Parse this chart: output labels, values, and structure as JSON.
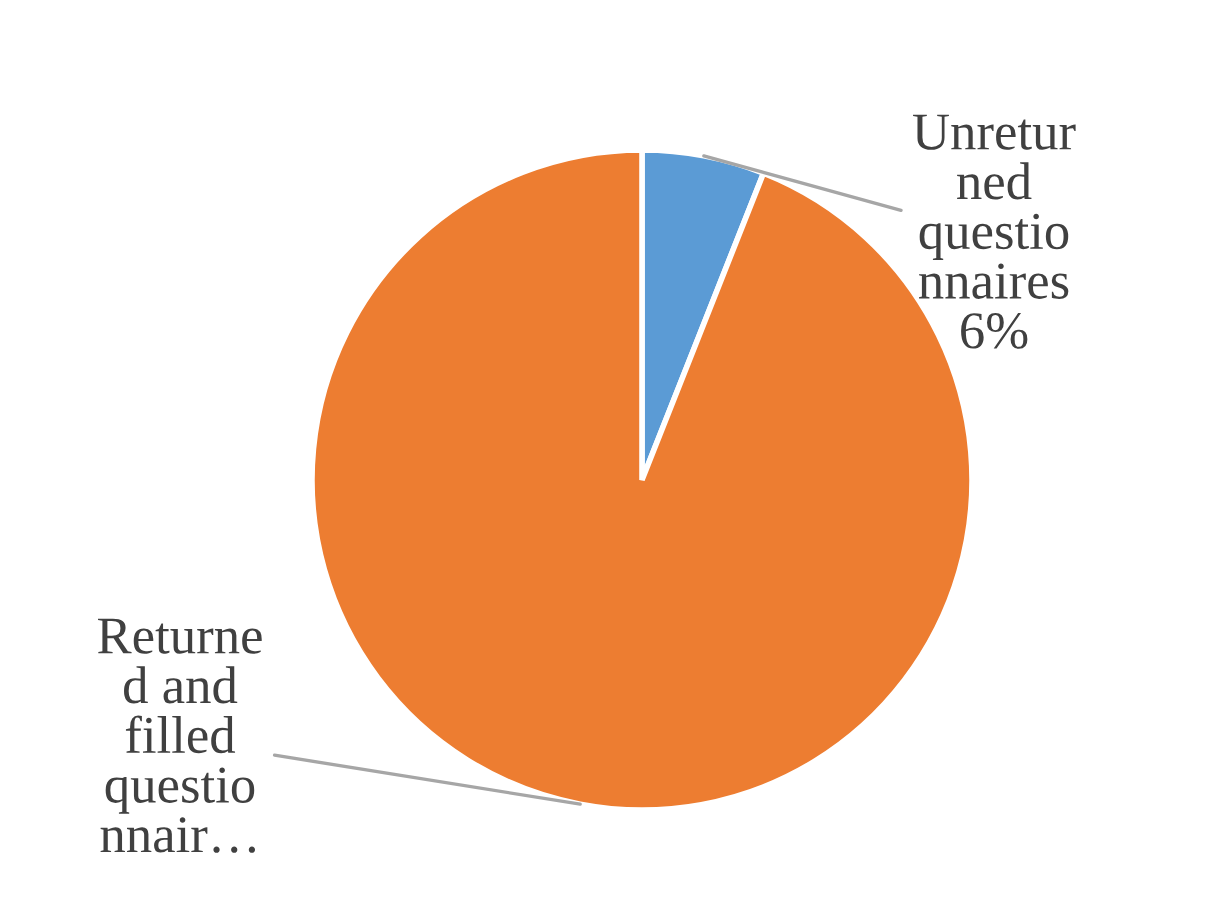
{
  "chart_data": {
    "type": "pie",
    "categories": [
      "Unretur\nned\nquestio\nnnaires",
      "Returne\nd and\nfilled\nquestio\nnnair…"
    ],
    "values": [
      6,
      94
    ],
    "value_labels": [
      "6%",
      null
    ],
    "colors": [
      "#5b9bd5",
      "#ed7d31"
    ],
    "legend": false
  }
}
